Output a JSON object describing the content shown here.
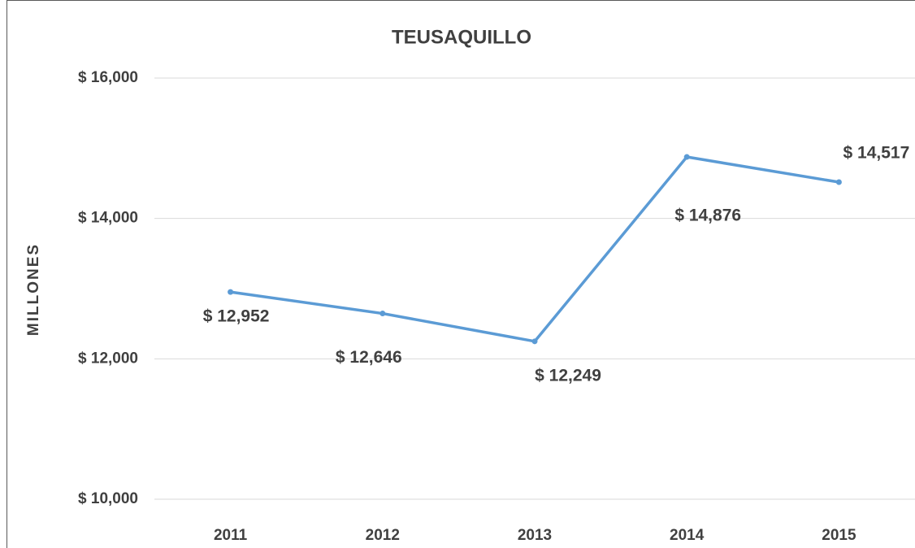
{
  "chart_data": {
    "type": "line",
    "title": "TEUSAQUILLO",
    "y_label": "MILLONES",
    "categories": [
      "2011",
      "2012",
      "2013",
      "2014",
      "2015"
    ],
    "values": [
      12952,
      12646,
      12249,
      14876,
      14517
    ],
    "value_labels": [
      "$ 12,952",
      "$ 12,646",
      "$ 12,249",
      "$ 14,876",
      "$ 14,517"
    ],
    "color": "#5b9bd5",
    "ylim": [
      10000,
      16000
    ],
    "yticks": [
      {
        "value": 10000,
        "label": "$ 10,000"
      },
      {
        "value": 12000,
        "label": "$ 12,000"
      },
      {
        "value": 14000,
        "label": "$ 14,000"
      },
      {
        "value": 16000,
        "label": "$ 16,000"
      }
    ],
    "grid": true
  }
}
